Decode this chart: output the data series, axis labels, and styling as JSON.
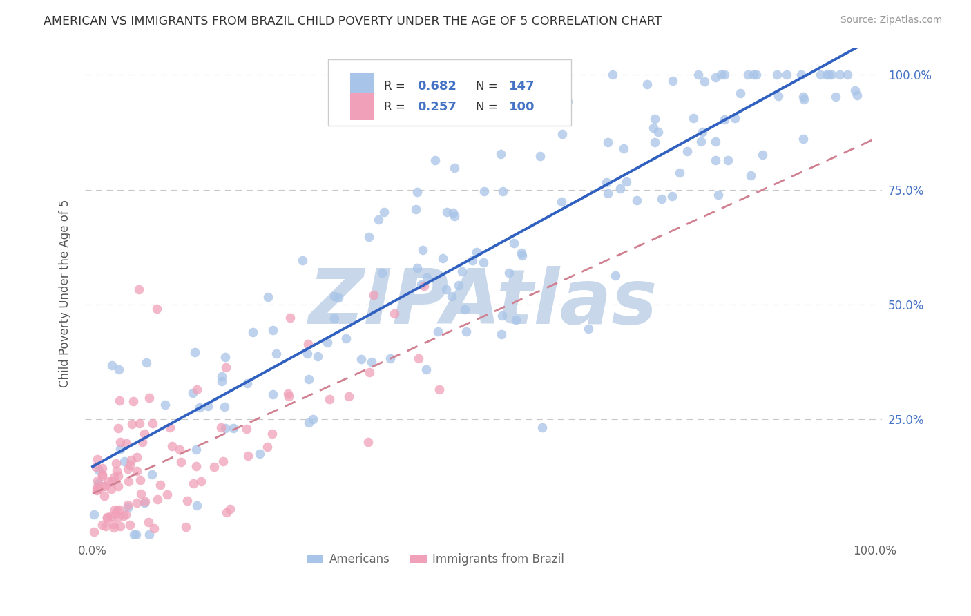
{
  "title": "AMERICAN VS IMMIGRANTS FROM BRAZIL CHILD POVERTY UNDER THE AGE OF 5 CORRELATION CHART",
  "source": "Source: ZipAtlas.com",
  "ylabel": "Child Poverty Under the Age of 5",
  "americans_color": "#a8c4e8",
  "brazil_color": "#f0a0b8",
  "line_color_americans": "#3060c0",
  "line_color_brazil": "#d08090",
  "background_color": "#ffffff",
  "watermark_text": "ZIPAtlas",
  "watermark_color": "#c8d8ea",
  "R_americans": 0.682,
  "R_brazil": 0.257,
  "N_americans": 147,
  "N_brazil": 100,
  "xlim": [
    0.0,
    1.0
  ],
  "ylim": [
    0.0,
    1.05
  ],
  "y_tick_vals": [
    0.25,
    0.5,
    0.75,
    1.0
  ],
  "y_tick_labels": [
    "25.0%",
    "50.0%",
    "75.0%",
    "100.0%"
  ]
}
